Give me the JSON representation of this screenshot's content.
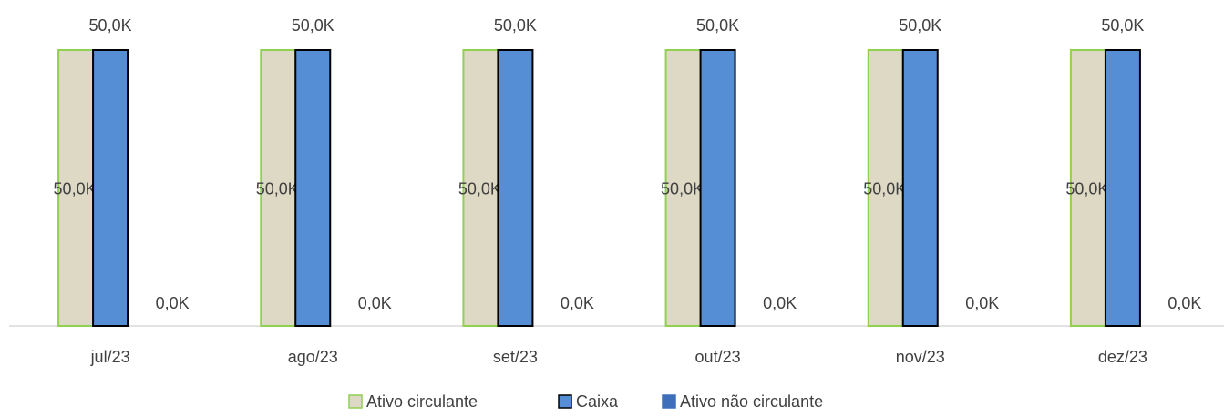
{
  "chart_data": {
    "type": "bar",
    "categories": [
      "jul/23",
      "ago/23",
      "set/23",
      "out/23",
      "nov/23",
      "dez/23"
    ],
    "series": [
      {
        "name": "Ativo circulante",
        "color": "#ddd9c4",
        "edgecolor": "#92d050",
        "values": [
          50,
          50,
          50,
          50,
          50,
          50
        ],
        "value_labels": [
          "50,0K",
          "50,0K",
          "50,0K",
          "50,0K",
          "50,0K",
          "50,0K"
        ]
      },
      {
        "name": "Caixa",
        "color": "#558ed5",
        "edgecolor": "#000000",
        "values": [
          50,
          50,
          50,
          50,
          50,
          50
        ],
        "value_labels": [
          "50,0K",
          "50,0K",
          "50,0K",
          "50,0K",
          "50,0K",
          "50,0K"
        ]
      },
      {
        "name": "Ativo não circulante",
        "color": "#3f6fba",
        "edgecolor": "#3f6fba",
        "values": [
          0,
          0,
          0,
          0,
          0,
          0
        ],
        "value_labels": [
          "0,0K",
          "0,0K",
          "0,0K",
          "0,0K",
          "0,0K",
          "0,0K"
        ]
      }
    ],
    "ylim": [
      0,
      50
    ],
    "legend": "bottom"
  }
}
